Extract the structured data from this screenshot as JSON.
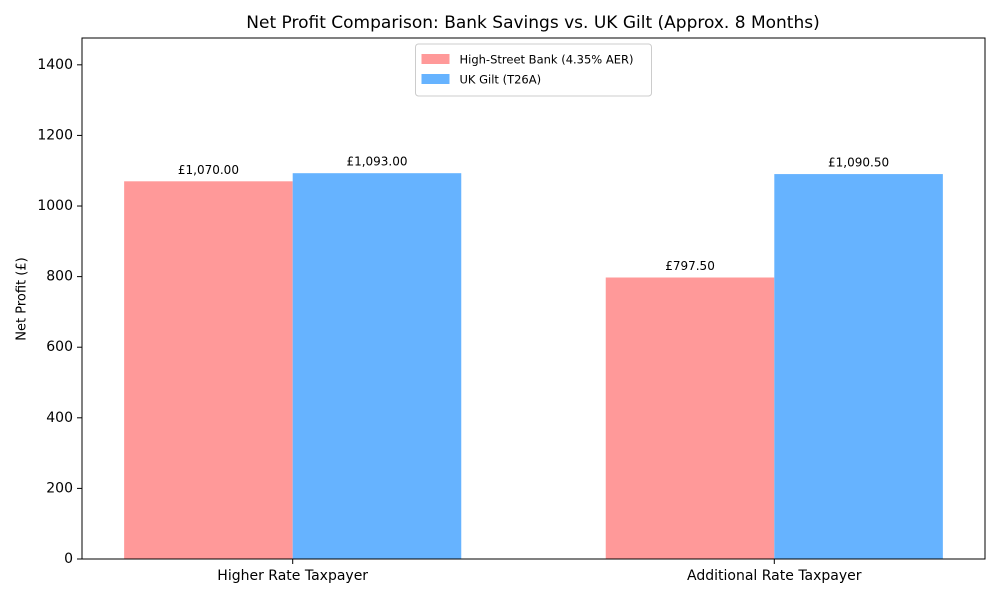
{
  "chart_data": {
    "type": "bar",
    "title": "Net Profit Comparison: Bank Savings vs. UK Gilt (Approx. 8 Months)",
    "y_label": "Net Profit (£)",
    "categories": [
      "Higher Rate Taxpayer",
      "Additional Rate Taxpayer"
    ],
    "series": [
      {
        "name": "High-Street Bank (4.35% AER)",
        "color": "#ff9999",
        "values": [
          1070,
          797.5
        ],
        "value_labels": [
          "£1,070.00",
          "£797.50"
        ]
      },
      {
        "name": "UK Gilt (T26A)",
        "color": "#66b3ff",
        "values": [
          1093,
          1090.5
        ],
        "value_labels": [
          "£1,093.00",
          "£1,090.50"
        ]
      }
    ],
    "ylim": [
      0,
      1476
    ],
    "yticks": [
      0,
      200,
      400,
      600,
      800,
      1000,
      1200,
      1400
    ],
    "legend": "upper center",
    "grid": false
  }
}
